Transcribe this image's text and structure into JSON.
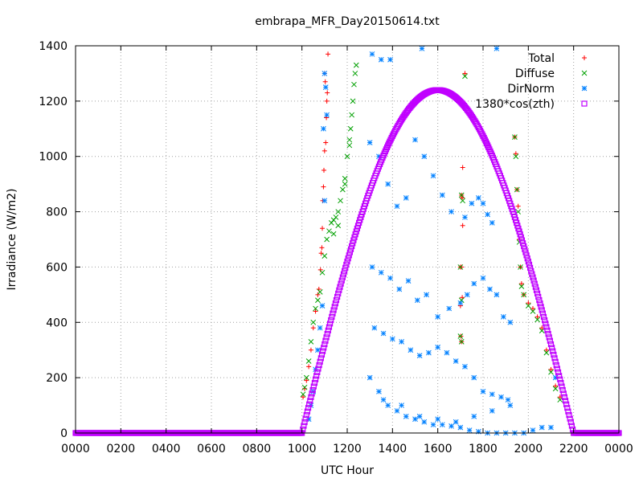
{
  "chart_data": {
    "type": "scatter",
    "title": "embrapa_MFR_Day20150614.txt",
    "xlabel": "UTC Hour",
    "ylabel": "Irradiance (W/m2)",
    "xlim": [
      0,
      24
    ],
    "ylim": [
      0,
      1400
    ],
    "x_tick_labels": [
      "0000",
      "0200",
      "0400",
      "0600",
      "0800",
      "1000",
      "1200",
      "1400",
      "1600",
      "1800",
      "2000",
      "2200",
      "0000"
    ],
    "y_tick_labels": [
      "0",
      "200",
      "400",
      "600",
      "800",
      "1000",
      "1200",
      "1400"
    ],
    "grid": true,
    "legend_position": "top-right",
    "series": [
      {
        "name": "Total",
        "marker": "plus",
        "color": "#ff0000",
        "points": [
          [
            10.05,
            130
          ],
          [
            10.12,
            160
          ],
          [
            10.2,
            190
          ],
          [
            10.3,
            240
          ],
          [
            10.4,
            300
          ],
          [
            10.5,
            380
          ],
          [
            10.6,
            440
          ],
          [
            10.7,
            500
          ],
          [
            10.75,
            520
          ],
          [
            10.82,
            590
          ],
          [
            10.85,
            650
          ],
          [
            10.88,
            670
          ],
          [
            10.9,
            740
          ],
          [
            10.92,
            840
          ],
          [
            10.95,
            890
          ],
          [
            10.97,
            950
          ],
          [
            11.0,
            1020
          ],
          [
            11.05,
            1050
          ],
          [
            11.08,
            1140
          ],
          [
            11.1,
            1200
          ],
          [
            11.12,
            1230
          ],
          [
            11.15,
            1370
          ],
          [
            11.0,
            1300
          ],
          [
            11.03,
            1270
          ],
          [
            17.2,
            1300
          ],
          [
            17.1,
            960
          ],
          [
            17.05,
            860
          ],
          [
            17.08,
            850
          ],
          [
            17.1,
            750
          ],
          [
            17.05,
            600
          ],
          [
            17.0,
            600
          ],
          [
            17.08,
            490
          ],
          [
            17.0,
            460
          ],
          [
            17.02,
            350
          ],
          [
            17.05,
            330
          ],
          [
            19.4,
            1070
          ],
          [
            19.45,
            1010
          ],
          [
            19.5,
            880
          ],
          [
            19.55,
            820
          ],
          [
            19.6,
            700
          ],
          [
            19.65,
            600
          ],
          [
            19.7,
            540
          ],
          [
            19.8,
            500
          ],
          [
            20.0,
            470
          ],
          [
            20.2,
            450
          ],
          [
            20.4,
            420
          ],
          [
            20.6,
            380
          ],
          [
            20.8,
            300
          ],
          [
            21.0,
            230
          ],
          [
            21.2,
            170
          ],
          [
            21.4,
            130
          ]
        ]
      },
      {
        "name": "Diffuse",
        "marker": "cross",
        "color": "#00a000",
        "points": [
          [
            10.05,
            140
          ],
          [
            10.12,
            165
          ],
          [
            10.2,
            200
          ],
          [
            10.3,
            260
          ],
          [
            10.4,
            330
          ],
          [
            10.5,
            400
          ],
          [
            10.6,
            450
          ],
          [
            10.7,
            480
          ],
          [
            10.8,
            510
          ],
          [
            10.9,
            580
          ],
          [
            11.0,
            640
          ],
          [
            11.1,
            700
          ],
          [
            11.2,
            730
          ],
          [
            11.3,
            760
          ],
          [
            11.4,
            770
          ],
          [
            11.5,
            780
          ],
          [
            11.6,
            800
          ],
          [
            11.7,
            840
          ],
          [
            11.8,
            880
          ],
          [
            11.9,
            920
          ],
          [
            12.0,
            1000
          ],
          [
            12.1,
            1040
          ],
          [
            12.15,
            1100
          ],
          [
            12.2,
            1150
          ],
          [
            12.25,
            1200
          ],
          [
            12.3,
            1260
          ],
          [
            12.35,
            1300
          ],
          [
            12.4,
            1330
          ],
          [
            12.1,
            1060
          ],
          [
            11.9,
            900
          ],
          [
            11.6,
            750
          ],
          [
            11.4,
            720
          ],
          [
            17.2,
            1290
          ],
          [
            17.05,
            860
          ],
          [
            17.1,
            840
          ],
          [
            17.0,
            600
          ],
          [
            17.05,
            480
          ],
          [
            17.0,
            350
          ],
          [
            17.05,
            330
          ],
          [
            19.4,
            1070
          ],
          [
            19.45,
            1000
          ],
          [
            19.5,
            880
          ],
          [
            19.55,
            800
          ],
          [
            19.6,
            690
          ],
          [
            19.65,
            600
          ],
          [
            19.7,
            530
          ],
          [
            19.8,
            500
          ],
          [
            20.0,
            460
          ],
          [
            20.2,
            440
          ],
          [
            20.4,
            410
          ],
          [
            20.6,
            370
          ],
          [
            20.8,
            290
          ],
          [
            21.0,
            220
          ],
          [
            21.2,
            160
          ],
          [
            21.4,
            120
          ]
        ]
      },
      {
        "name": "DirNorm",
        "marker": "star",
        "color": "#0080ff",
        "points": [
          [
            10.3,
            50
          ],
          [
            10.4,
            100
          ],
          [
            10.5,
            150
          ],
          [
            10.6,
            230
          ],
          [
            10.7,
            300
          ],
          [
            10.8,
            380
          ],
          [
            10.9,
            460
          ],
          [
            11.0,
            1300
          ],
          [
            11.05,
            1250
          ],
          [
            11.1,
            1150
          ],
          [
            10.95,
            1100
          ],
          [
            11.0,
            840
          ],
          [
            13.1,
            1370
          ],
          [
            13.5,
            1350
          ],
          [
            13.9,
            1350
          ],
          [
            15.3,
            1390
          ],
          [
            18.6,
            1390
          ],
          [
            13.0,
            1050
          ],
          [
            13.4,
            1000
          ],
          [
            13.8,
            900
          ],
          [
            14.2,
            820
          ],
          [
            14.6,
            850
          ],
          [
            15.0,
            1060
          ],
          [
            15.4,
            1000
          ],
          [
            15.8,
            930
          ],
          [
            16.2,
            860
          ],
          [
            16.6,
            800
          ],
          [
            17.2,
            780
          ],
          [
            17.5,
            830
          ],
          [
            17.8,
            850
          ],
          [
            18.0,
            830
          ],
          [
            18.2,
            790
          ],
          [
            18.4,
            760
          ],
          [
            13.1,
            600
          ],
          [
            13.5,
            580
          ],
          [
            13.9,
            560
          ],
          [
            14.3,
            520
          ],
          [
            14.7,
            550
          ],
          [
            15.1,
            480
          ],
          [
            15.5,
            500
          ],
          [
            16.0,
            420
          ],
          [
            16.5,
            450
          ],
          [
            17.0,
            470
          ],
          [
            17.3,
            500
          ],
          [
            17.6,
            540
          ],
          [
            18.0,
            560
          ],
          [
            18.3,
            520
          ],
          [
            18.6,
            500
          ],
          [
            18.9,
            420
          ],
          [
            19.2,
            400
          ],
          [
            13.2,
            380
          ],
          [
            13.6,
            360
          ],
          [
            14.0,
            340
          ],
          [
            14.4,
            330
          ],
          [
            14.8,
            300
          ],
          [
            15.2,
            280
          ],
          [
            15.6,
            290
          ],
          [
            16.0,
            310
          ],
          [
            16.4,
            290
          ],
          [
            16.8,
            260
          ],
          [
            17.2,
            240
          ],
          [
            17.6,
            200
          ],
          [
            18.0,
            150
          ],
          [
            18.4,
            140
          ],
          [
            18.8,
            130
          ],
          [
            19.1,
            120
          ],
          [
            13.0,
            200
          ],
          [
            13.4,
            150
          ],
          [
            13.8,
            100
          ],
          [
            14.2,
            80
          ],
          [
            14.6,
            60
          ],
          [
            15.0,
            50
          ],
          [
            15.4,
            40
          ],
          [
            15.8,
            30
          ],
          [
            16.2,
            30
          ],
          [
            16.6,
            25
          ],
          [
            17.0,
            20
          ],
          [
            17.4,
            10
          ],
          [
            17.8,
            5
          ],
          [
            18.2,
            0
          ],
          [
            18.6,
            0
          ],
          [
            19.0,
            0
          ],
          [
            19.4,
            0
          ],
          [
            19.8,
            0
          ],
          [
            20.2,
            10
          ],
          [
            20.6,
            20
          ],
          [
            21.0,
            20
          ],
          [
            21.2,
            200
          ],
          [
            13.6,
            120
          ],
          [
            14.4,
            100
          ],
          [
            15.2,
            60
          ],
          [
            16.0,
            50
          ],
          [
            16.8,
            40
          ],
          [
            17.6,
            60
          ],
          [
            18.4,
            80
          ],
          [
            19.2,
            100
          ]
        ]
      },
      {
        "name": "1380*cos(zth)",
        "marker": "square",
        "color": "#c000ff",
        "fn": {
          "amp": 1240,
          "t_noon": 16.0,
          "half_width": 6.0
        }
      }
    ]
  }
}
